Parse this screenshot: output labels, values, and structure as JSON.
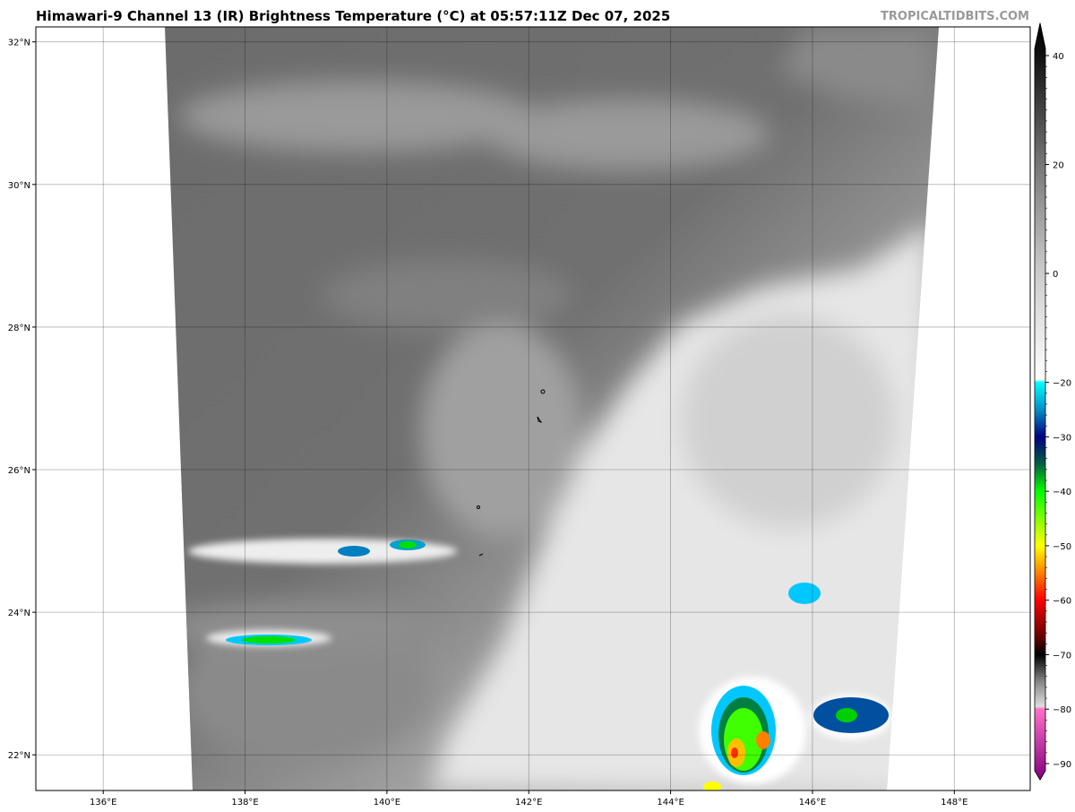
{
  "header": {
    "title": "Himawari-9 Channel 13 (IR) Brightness Temperature (°C) at 05:57:11Z Dec 07, 2025",
    "credit": "TROPICALTIDBITS.COM"
  },
  "map": {
    "satellite": "Himawari-9",
    "channel": "Channel 13 (IR)",
    "extent": {
      "lon": [
        135.05,
        149.07
      ],
      "lat": [
        21.5,
        32.21
      ]
    },
    "lon_ticks": [
      136,
      138,
      140,
      142,
      144,
      146,
      148
    ],
    "lon_labels": [
      "136°E",
      "138°E",
      "140°E",
      "142°E",
      "144°E",
      "146°E",
      "148°E"
    ],
    "lat_ticks": [
      22,
      24,
      26,
      28,
      30,
      32
    ],
    "lat_labels": [
      "22°N",
      "24°N",
      "26°N",
      "28°N",
      "30°N",
      "32°N"
    ],
    "grid": true
  },
  "colorbar": {
    "unit": "°C",
    "range": [
      -93,
      46
    ],
    "ticks": [
      40,
      20,
      0,
      -20,
      -30,
      -40,
      -50,
      -60,
      -70,
      -80,
      -90
    ],
    "tick_labels": [
      "40",
      "20",
      "0",
      "−20",
      "−30",
      "−40",
      "−50",
      "−60",
      "−70",
      "−80",
      "−90"
    ],
    "stops": [
      {
        "v": 46,
        "c": "#000000"
      },
      {
        "v": 40,
        "c": "#111111"
      },
      {
        "v": 20,
        "c": "#777777"
      },
      {
        "v": 0,
        "c": "#cccccc"
      },
      {
        "v": -19.5,
        "c": "#ffffff"
      },
      {
        "v": -20,
        "c": "#00ffff"
      },
      {
        "v": -25,
        "c": "#0090c8"
      },
      {
        "v": -30,
        "c": "#000080"
      },
      {
        "v": -35,
        "c": "#006040"
      },
      {
        "v": -40,
        "c": "#00ff00"
      },
      {
        "v": -50,
        "c": "#ffff00"
      },
      {
        "v": -55,
        "c": "#ff8000"
      },
      {
        "v": -60,
        "c": "#ff0000"
      },
      {
        "v": -67,
        "c": "#600000"
      },
      {
        "v": -70,
        "c": "#000000"
      },
      {
        "v": -75,
        "c": "#888888"
      },
      {
        "v": -79.5,
        "c": "#dddddd"
      },
      {
        "v": -80,
        "c": "#ff70c8"
      },
      {
        "v": -93,
        "c": "#800080"
      }
    ]
  }
}
